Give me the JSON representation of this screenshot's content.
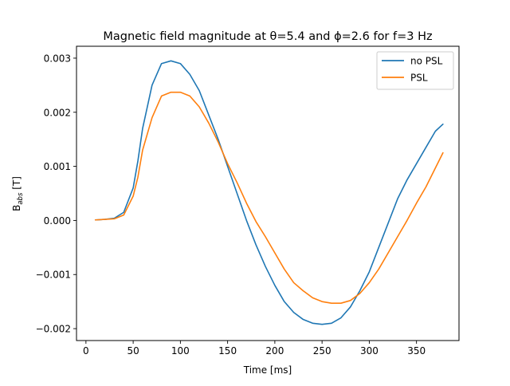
{
  "chart_data": {
    "type": "line",
    "title": "Magnetic field magnitude at θ=5.4 and ϕ=2.6 for f=3 Hz",
    "xlabel": "Time [ms]",
    "ylabel": "B",
    "ylabel_subscript": "abs",
    "ylabel_unit": " [T]",
    "xlim": [
      -10,
      395
    ],
    "ylim": [
      -0.00222,
      0.00322
    ],
    "x_ticks": [
      0,
      50,
      100,
      150,
      200,
      250,
      300,
      350
    ],
    "x_tick_labels": [
      "0",
      "50",
      "100",
      "150",
      "200",
      "250",
      "300",
      "350"
    ],
    "y_ticks": [
      -0.002,
      -0.001,
      0.0,
      0.001,
      0.002,
      0.003
    ],
    "y_tick_labels": [
      "−0.002",
      "−0.001",
      "0.000",
      "0.001",
      "0.002",
      "0.003"
    ],
    "grid": false,
    "legend_position": "top-right",
    "x": [
      10,
      20,
      30,
      40,
      50,
      55,
      60,
      70,
      80,
      90,
      100,
      110,
      120,
      130,
      140,
      150,
      160,
      170,
      180,
      190,
      200,
      210,
      220,
      230,
      240,
      250,
      260,
      270,
      280,
      290,
      300,
      310,
      320,
      330,
      340,
      350,
      360,
      370,
      378
    ],
    "series": [
      {
        "name": "no PSL",
        "color": "#1f77b4",
        "values": [
          1e-05,
          2e-05,
          4e-05,
          0.00015,
          0.0006,
          0.0011,
          0.0017,
          0.0025,
          0.0029,
          0.00295,
          0.0029,
          0.0027,
          0.0024,
          0.00195,
          0.0015,
          0.001,
          0.0005,
          0.0,
          -0.00045,
          -0.00085,
          -0.0012,
          -0.0015,
          -0.0017,
          -0.00183,
          -0.0019,
          -0.00192,
          -0.0019,
          -0.0018,
          -0.0016,
          -0.0013,
          -0.00095,
          -0.0005,
          -5e-05,
          0.0004,
          0.00075,
          0.00105,
          0.00135,
          0.00165,
          0.00178
        ]
      },
      {
        "name": "PSL",
        "color": "#ff7f0e",
        "values": [
          1e-05,
          2e-05,
          3e-05,
          0.0001,
          0.00045,
          0.0008,
          0.0013,
          0.0019,
          0.0023,
          0.00237,
          0.00237,
          0.0023,
          0.0021,
          0.0018,
          0.00145,
          0.00105,
          0.0007,
          0.00032,
          -2e-05,
          -0.0003,
          -0.0006,
          -0.0009,
          -0.00115,
          -0.0013,
          -0.00143,
          -0.0015,
          -0.00153,
          -0.00153,
          -0.00148,
          -0.00135,
          -0.00115,
          -0.0009,
          -0.0006,
          -0.0003,
          0.0,
          0.00032,
          0.00062,
          0.00097,
          0.00125
        ]
      }
    ]
  }
}
